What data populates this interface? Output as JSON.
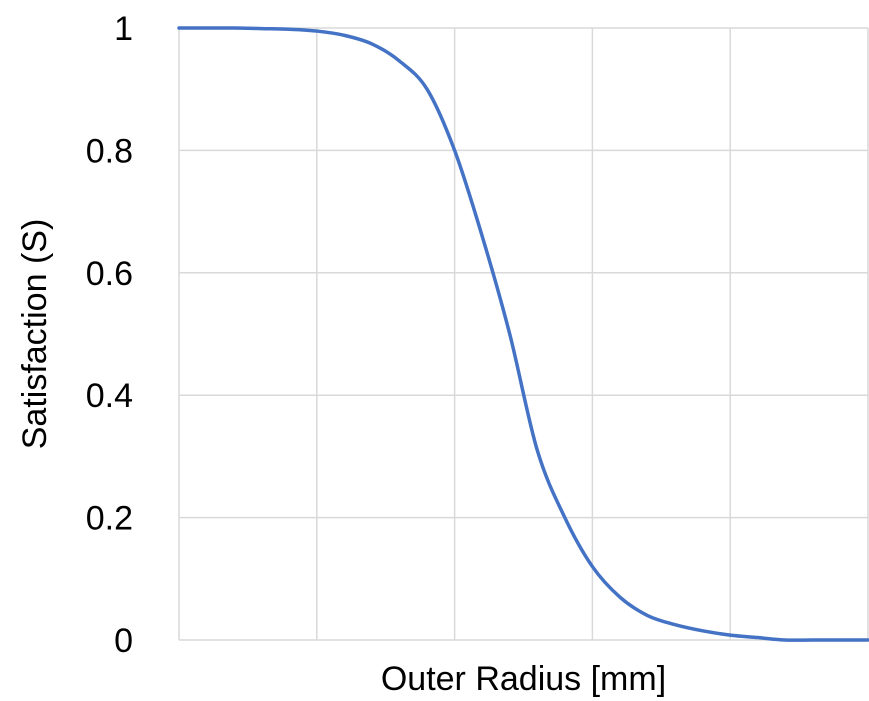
{
  "chart_data": {
    "type": "line",
    "title": "",
    "xlabel": "Outer Radius [mm]",
    "ylabel": "Satisfaction (S)",
    "xlim": [
      0,
      5
    ],
    "ylim": [
      0,
      1
    ],
    "x_tick_labels_shown": false,
    "y_ticks": [
      0,
      0.2,
      0.4,
      0.6,
      0.8,
      1
    ],
    "y_tick_labels": [
      "0",
      "0.2",
      "0.4",
      "0.6",
      "0.8",
      "1"
    ],
    "grid": true,
    "legend": "none",
    "series": [
      {
        "color": "#4472c4",
        "x": [
          0,
          0.2,
          0.4,
          0.6,
          0.8,
          1.0,
          1.2,
          1.4,
          1.6,
          1.8,
          2.0,
          2.2,
          2.4,
          2.6,
          2.8,
          3.0,
          3.2,
          3.4,
          3.6,
          3.8,
          4.0,
          4.2,
          4.4,
          4.6,
          4.8,
          5.0
        ],
        "y": [
          1.0,
          1.0,
          1.0,
          0.999,
          0.998,
          0.995,
          0.988,
          0.974,
          0.946,
          0.9,
          0.8,
          0.66,
          0.5,
          0.31,
          0.2,
          0.12,
          0.07,
          0.04,
          0.025,
          0.015,
          0.008,
          0.004,
          0.0,
          0.0,
          0.0,
          0.0
        ]
      }
    ]
  }
}
